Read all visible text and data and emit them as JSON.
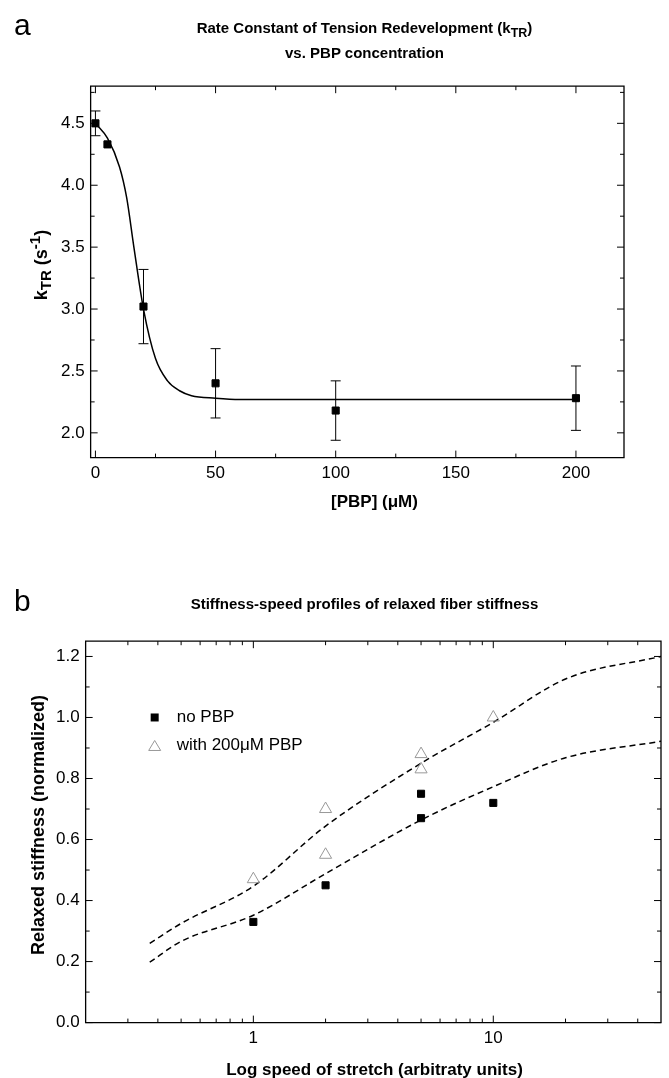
{
  "chart_data": [
    {
      "type": "scatter",
      "title": "Rate Constant of Tension Redevelopment (k$_{TR}$)\nvs. PBP concentration",
      "xlabel": "[PBP] (μM)",
      "ylabel": "k$_{TR}$ (s$^{-1}$)",
      "annotations": [
        "a"
      ],
      "xlim": [
        -2,
        220
      ],
      "ylim": [
        1.8,
        4.8
      ],
      "xticks": [
        0,
        {
          "value": 25,
          "label": null
        },
        50,
        {
          "value": 75,
          "label": null
        },
        100,
        {
          "value": 125,
          "label": null
        },
        150,
        {
          "value": 175,
          "label": null
        },
        200
      ],
      "yticks": [
        {
          "value": 2.0,
          "label": "2.0"
        },
        {
          "value": 2.25,
          "label": null
        },
        {
          "value": 2.5,
          "label": "2.5"
        },
        {
          "value": 2.75,
          "label": null
        },
        {
          "value": 3.0,
          "label": "3.0"
        },
        {
          "value": 3.25,
          "label": null
        },
        {
          "value": 3.5,
          "label": "3.5"
        },
        {
          "value": 3.75,
          "label": null
        },
        {
          "value": 4.0,
          "label": "4.0"
        },
        {
          "value": 4.25,
          "label": null
        },
        {
          "value": 4.5,
          "label": "4.5"
        },
        {
          "value": 4.75,
          "label": null
        }
      ],
      "grid": false,
      "legend": false,
      "marker": "square",
      "series": [
        {
          "type": "scatter",
          "color": "#000000",
          "x": [
            0,
            5,
            20,
            50,
            100,
            200
          ],
          "values": [
            4.5,
            4.33,
            3.02,
            2.4,
            2.18,
            2.28
          ],
          "errors": [
            0.1,
            null,
            0.3,
            0.28,
            0.24,
            0.26
          ]
        },
        {
          "type": "line",
          "color": "#000000",
          "marker": "none",
          "line_style": "solid",
          "x": [
            0,
            5,
            10,
            13,
            16,
            20,
            25,
            30,
            35,
            40,
            50,
            60,
            100,
            150,
            200
          ],
          "values": [
            4.5,
            4.38,
            4.15,
            3.9,
            3.5,
            3.0,
            2.6,
            2.42,
            2.34,
            2.3,
            2.28,
            2.27,
            2.27,
            2.27,
            2.27
          ]
        }
      ]
    },
    {
      "type": "scatter",
      "title": "Stiffness-speed profiles of relaxed fiber stiffness",
      "xlabel": "Log speed of stretch (arbitraty units)",
      "ylabel": "Relaxed stiffness (normalized)",
      "annotations": [
        "b"
      ],
      "log": "x",
      "xlim": [
        0.2,
        50
      ],
      "ylim": [
        0,
        1.25
      ],
      "xticks": [
        {
          "value": 0.3,
          "label": null
        },
        {
          "value": 0.4,
          "label": null
        },
        {
          "value": 0.5,
          "label": null
        },
        {
          "value": 0.6,
          "label": null
        },
        {
          "value": 0.7,
          "label": null
        },
        {
          "value": 0.8,
          "label": null
        },
        {
          "value": 0.9,
          "label": null
        },
        1,
        {
          "value": 2,
          "label": null
        },
        {
          "value": 3,
          "label": null
        },
        {
          "value": 4,
          "label": null
        },
        {
          "value": 5,
          "label": null
        },
        {
          "value": 6,
          "label": null
        },
        {
          "value": 7,
          "label": null
        },
        {
          "value": 8,
          "label": null
        },
        {
          "value": 9,
          "label": null
        },
        10,
        {
          "value": 20,
          "label": null
        },
        {
          "value": 30,
          "label": null
        },
        {
          "value": 40,
          "label": null
        }
      ],
      "yticks": [
        {
          "value": 0,
          "label": "0.0"
        },
        {
          "value": 0.1,
          "label": null
        },
        0.2,
        {
          "value": 0.3,
          "label": null
        },
        0.4,
        {
          "value": 0.5,
          "label": null
        },
        0.6,
        {
          "value": 0.7,
          "label": null
        },
        0.8,
        {
          "value": 0.9,
          "label": null
        },
        {
          "value": 1.0,
          "label": "1.0"
        },
        {
          "value": 1.1,
          "label": null
        },
        1.2
      ],
      "grid": false,
      "legend": "top left",
      "series": [
        {
          "type": "scatter",
          "name": "no PBP",
          "color": "#000000",
          "marker": "square",
          "x": [
            1,
            2,
            5,
            5,
            10
          ],
          "values": [
            0.33,
            0.45,
            0.75,
            0.67,
            0.72
          ]
        },
        {
          "type": "scatter",
          "name": "with 200μM PBP",
          "color": "#999999",
          "marker": "triangle",
          "x": [
            1,
            2,
            2,
            5,
            5,
            10
          ],
          "values": [
            0.47,
            0.7,
            0.55,
            0.88,
            0.83,
            1.0
          ]
        },
        {
          "type": "line",
          "color": "#000000",
          "marker": "none",
          "line_style": "dashed",
          "x": [
            0.37,
            0.5,
            1,
            2,
            5,
            10,
            20,
            50
          ],
          "values": [
            0.26,
            0.325,
            0.447,
            0.644,
            0.85,
            0.984,
            1.126,
            1.2
          ]
        },
        {
          "type": "line",
          "color": "#000000",
          "marker": "none",
          "line_style": "dashed",
          "x": [
            0.37,
            0.5,
            1,
            2,
            5,
            10,
            20,
            50
          ],
          "values": [
            0.198,
            0.266,
            0.352,
            0.488,
            0.664,
            0.773,
            0.868,
            0.922
          ]
        }
      ]
    }
  ]
}
